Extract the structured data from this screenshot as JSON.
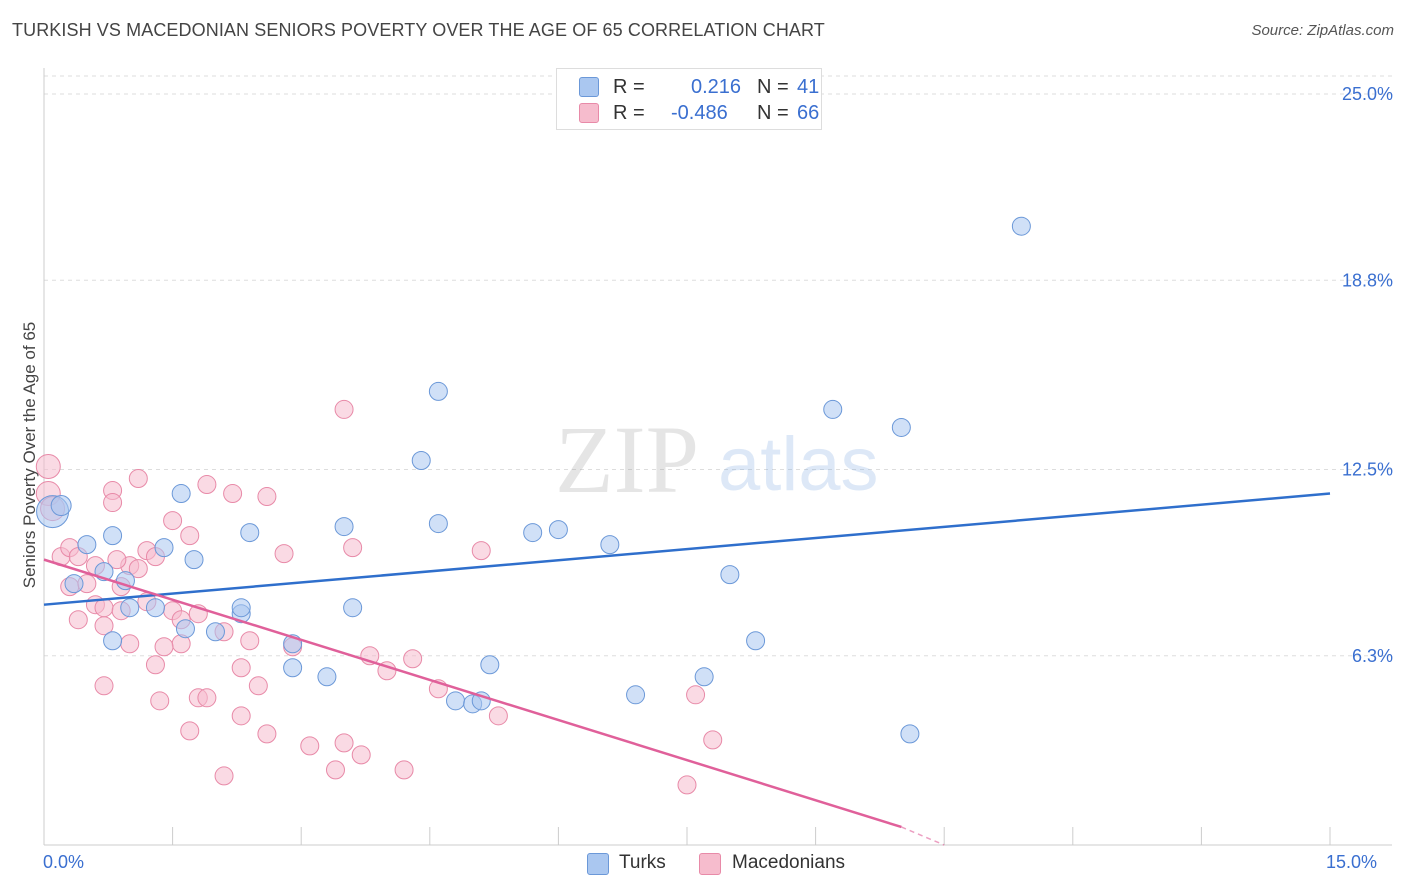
{
  "header": {
    "title": "TURKISH VS MACEDONIAN SENIORS POVERTY OVER THE AGE OF 65 CORRELATION CHART",
    "source": "Source: ZipAtlas.com"
  },
  "legend_box": {
    "rows": [
      {
        "label": "R =",
        "r_value": "0.216",
        "n_label": "N =",
        "n_value": "41"
      },
      {
        "label": "R =",
        "r_value": "-0.486",
        "n_label": "N =",
        "n_value": "66"
      }
    ]
  },
  "bottom_legend": {
    "turks": "Turks",
    "macedonians": "Macedonians"
  },
  "watermark": {
    "zip": "ZIP",
    "atlas": "atlas"
  },
  "colors": {
    "turks_fill": "#aac7f0",
    "turks_stroke": "#6b98d8",
    "turks_line": "#2f6fcc",
    "mac_fill": "#f6bccd",
    "mac_stroke": "#e88aa8",
    "mac_line": "#e0609a",
    "tick_label": "#3a6fd0",
    "grid": "#dddddd"
  },
  "chart_data": {
    "type": "scatter",
    "title": "TURKISH VS MACEDONIAN SENIORS POVERTY OVER THE AGE OF 65 CORRELATION CHART",
    "xlabel": "",
    "ylabel": "Seniors Poverty Over the Age of 65",
    "xlim": [
      0,
      15
    ],
    "ylim": [
      0,
      25.6
    ],
    "x_tick_labels": [
      "0.0%",
      "15.0%"
    ],
    "y_ticks": [
      6.3,
      12.5,
      18.8,
      25.0
    ],
    "y_tick_labels": [
      "6.3%",
      "12.5%",
      "18.8%",
      "25.0%"
    ],
    "grid": "horizontal dashed",
    "series": [
      {
        "name": "Turks",
        "R": 0.216,
        "N": 41,
        "points": [
          [
            0.1,
            11.1
          ],
          [
            0.2,
            11.3
          ],
          [
            0.35,
            8.7
          ],
          [
            0.5,
            10.0
          ],
          [
            0.7,
            9.1
          ],
          [
            0.8,
            10.3
          ],
          [
            0.8,
            6.8
          ],
          [
            1.3,
            7.9
          ],
          [
            1.4,
            9.9
          ],
          [
            1.6,
            11.7
          ],
          [
            1.75,
            9.5
          ],
          [
            1.65,
            7.2
          ],
          [
            2.0,
            7.1
          ],
          [
            2.3,
            7.7
          ],
          [
            2.3,
            7.9
          ],
          [
            2.4,
            10.4
          ],
          [
            2.9,
            6.7
          ],
          [
            2.9,
            5.9
          ],
          [
            3.3,
            5.6
          ],
          [
            3.5,
            10.6
          ],
          [
            3.6,
            7.9
          ],
          [
            4.4,
            12.8
          ],
          [
            4.6,
            15.1
          ],
          [
            4.6,
            10.7
          ],
          [
            4.8,
            4.8
          ],
          [
            5.0,
            4.7
          ],
          [
            5.1,
            4.8
          ],
          [
            5.2,
            6.0
          ],
          [
            5.7,
            10.4
          ],
          [
            6.0,
            10.5
          ],
          [
            6.6,
            10.0
          ],
          [
            6.9,
            5.0
          ],
          [
            7.7,
            5.6
          ],
          [
            8.0,
            9.0
          ],
          [
            8.3,
            6.8
          ],
          [
            9.2,
            14.5
          ],
          [
            10.0,
            13.9
          ],
          [
            10.1,
            3.7
          ],
          [
            11.4,
            20.6
          ],
          [
            1.0,
            7.9
          ],
          [
            0.95,
            8.8
          ]
        ]
      },
      {
        "name": "Macedonians",
        "R": -0.486,
        "N": 66,
        "points": [
          [
            0.05,
            12.6
          ],
          [
            0.05,
            11.7
          ],
          [
            0.1,
            11.2
          ],
          [
            0.2,
            9.6
          ],
          [
            0.3,
            9.9
          ],
          [
            0.3,
            8.6
          ],
          [
            0.4,
            9.6
          ],
          [
            0.4,
            7.5
          ],
          [
            0.5,
            8.7
          ],
          [
            0.6,
            9.3
          ],
          [
            0.6,
            8.0
          ],
          [
            0.7,
            7.3
          ],
          [
            0.7,
            7.9
          ],
          [
            0.7,
            5.3
          ],
          [
            0.8,
            11.8
          ],
          [
            0.8,
            11.4
          ],
          [
            0.9,
            8.6
          ],
          [
            0.9,
            7.8
          ],
          [
            1.0,
            9.3
          ],
          [
            1.0,
            6.7
          ],
          [
            1.1,
            12.2
          ],
          [
            1.1,
            9.2
          ],
          [
            1.2,
            9.8
          ],
          [
            1.2,
            8.1
          ],
          [
            1.3,
            9.6
          ],
          [
            1.3,
            6.0
          ],
          [
            1.35,
            4.8
          ],
          [
            1.5,
            10.8
          ],
          [
            1.5,
            7.8
          ],
          [
            1.6,
            7.5
          ],
          [
            1.6,
            6.7
          ],
          [
            1.7,
            10.3
          ],
          [
            1.7,
            3.8
          ],
          [
            1.8,
            7.7
          ],
          [
            1.8,
            4.9
          ],
          [
            1.9,
            12.0
          ],
          [
            1.9,
            4.9
          ],
          [
            2.1,
            7.1
          ],
          [
            2.1,
            2.3
          ],
          [
            2.2,
            11.7
          ],
          [
            2.3,
            4.3
          ],
          [
            2.3,
            5.9
          ],
          [
            2.4,
            6.8
          ],
          [
            2.5,
            5.3
          ],
          [
            2.6,
            11.6
          ],
          [
            2.6,
            3.7
          ],
          [
            2.8,
            9.7
          ],
          [
            3.1,
            3.3
          ],
          [
            3.4,
            2.5
          ],
          [
            3.5,
            3.4
          ],
          [
            3.5,
            14.5
          ],
          [
            3.6,
            9.9
          ],
          [
            3.7,
            3.0
          ],
          [
            3.8,
            6.3
          ],
          [
            4.0,
            5.8
          ],
          [
            4.2,
            2.5
          ],
          [
            4.3,
            6.2
          ],
          [
            4.6,
            5.2
          ],
          [
            5.1,
            9.8
          ],
          [
            5.3,
            4.3
          ],
          [
            7.5,
            2.0
          ],
          [
            7.6,
            5.0
          ],
          [
            7.8,
            3.5
          ],
          [
            1.4,
            6.6
          ],
          [
            2.9,
            6.6
          ],
          [
            0.85,
            9.5
          ]
        ]
      }
    ],
    "trendlines": [
      {
        "series": "Turks",
        "from": [
          0,
          8.0
        ],
        "to": [
          15,
          11.7
        ]
      },
      {
        "series": "Macedonians",
        "from": [
          0,
          9.5
        ],
        "to": [
          10,
          0.6
        ],
        "dashed_from": [
          10,
          0.6
        ],
        "dashed_to": [
          10.5,
          0.0
        ]
      }
    ]
  }
}
